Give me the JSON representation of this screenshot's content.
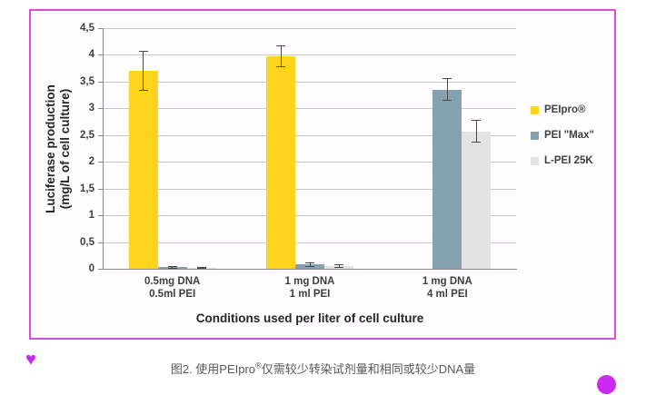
{
  "figure": {
    "border_color": "#d44fdb",
    "caption": {
      "text_before_sup": "图2. 使用PEIpro",
      "sup": "®",
      "text_after_sup": "仅需较少转染试剂量和相同或较少DNA量"
    }
  },
  "decorations": {
    "heart_icon": "♥",
    "accent_color": "#cb29f0"
  },
  "chart_data": {
    "type": "bar",
    "title": "",
    "ylabel_line1": "Luciferase production",
    "ylabel_line2": "(mg/L of cell culture)",
    "xlabel": "Conditions used per liter of cell culture",
    "categories": [
      [
        "0.5mg DNA",
        "0.5ml PEI"
      ],
      [
        "1 mg DNA",
        "1 ml PEI"
      ],
      [
        "1 mg DNA",
        "4 ml PEI"
      ]
    ],
    "series": [
      {
        "name": "PEIpro®",
        "color": "#ffd31e",
        "values": [
          3.7,
          3.97,
          null
        ],
        "errors": [
          0.36,
          0.2,
          null
        ]
      },
      {
        "name": "PEI \"Max\"",
        "color": "#85a1af",
        "values": [
          0.03,
          0.08,
          3.35
        ],
        "errors": [
          0.02,
          0.03,
          0.2
        ]
      },
      {
        "name": "L-PEI 25K",
        "color": "#e3e3e3",
        "values": [
          0.02,
          0.05,
          2.57
        ],
        "errors": [
          0.01,
          0.03,
          0.2
        ]
      }
    ],
    "ylim": [
      0,
      4.5
    ],
    "ytick_step": 0.5,
    "ytick_labels": [
      "0",
      "0,5",
      "1",
      "1,5",
      "2",
      "2,5",
      "3",
      "3,5",
      "4",
      "4,5"
    ],
    "grid": true,
    "legend_position": "right"
  }
}
